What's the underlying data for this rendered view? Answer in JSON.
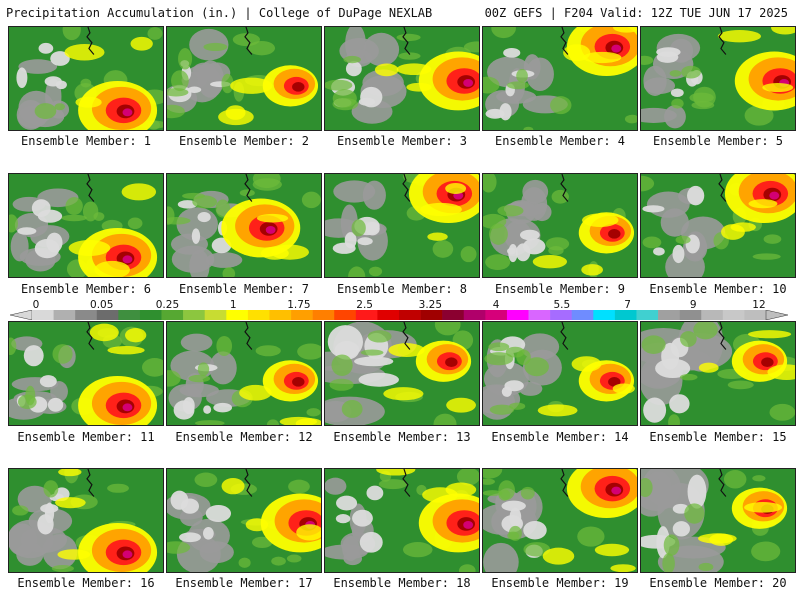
{
  "header": {
    "left_title": "Precipitation Accumulation (in.) | College of DuPage NEXLAB",
    "right_title": "00Z GEFS | F204 Valid: 12Z TUE JUN 17 2025"
  },
  "panels": [
    {
      "caption": "Ensemble Member: 1",
      "dominant": "wet-south-east"
    },
    {
      "caption": "Ensemble Member: 2",
      "dominant": "moderate"
    },
    {
      "caption": "Ensemble Member: 3",
      "dominant": "wet-east"
    },
    {
      "caption": "Ensemble Member: 4",
      "dominant": "wet-north-east"
    },
    {
      "caption": "Ensemble Member: 5",
      "dominant": "wet-east"
    },
    {
      "caption": "Ensemble Member: 6",
      "dominant": "wet-south-east"
    },
    {
      "caption": "Ensemble Member: 7",
      "dominant": "wet-central"
    },
    {
      "caption": "Ensemble Member: 8",
      "dominant": "wet-north-east"
    },
    {
      "caption": "Ensemble Member: 9",
      "dominant": "moderate"
    },
    {
      "caption": "Ensemble Member: 10",
      "dominant": "wet-north-east"
    },
    {
      "caption": "Ensemble Member: 11",
      "dominant": "wet-south-east"
    },
    {
      "caption": "Ensemble Member: 12",
      "dominant": "moderate"
    },
    {
      "caption": "Ensemble Member: 13",
      "dominant": "dry-west"
    },
    {
      "caption": "Ensemble Member: 14",
      "dominant": "moderate"
    },
    {
      "caption": "Ensemble Member: 15",
      "dominant": "dry-west"
    },
    {
      "caption": "Ensemble Member: 16",
      "dominant": "wet-south-east"
    },
    {
      "caption": "Ensemble Member: 17",
      "dominant": "wet-east"
    },
    {
      "caption": "Ensemble Member: 18",
      "dominant": "wet-east"
    },
    {
      "caption": "Ensemble Member: 19",
      "dominant": "wet-north-east"
    },
    {
      "caption": "Ensemble Member: 20",
      "dominant": "dry-west"
    }
  ],
  "colorbar": {
    "labels": [
      "0",
      "0.05",
      "0.25",
      "1",
      "1.75",
      "2.5",
      "3.25",
      "4",
      "5.5",
      "7",
      "9",
      "12"
    ],
    "colors": [
      "#d9d9d9",
      "#b0b0b0",
      "#8a8a8a",
      "#6c6c6c",
      "#3f8f3f",
      "#2f8f2f",
      "#56a832",
      "#8cc63f",
      "#c8dc32",
      "#ffff00",
      "#ffe000",
      "#ffbf00",
      "#ff9f00",
      "#ff7f00",
      "#ff4500",
      "#ff1a1a",
      "#e00000",
      "#c00000",
      "#a00000",
      "#8b0030",
      "#b0006a",
      "#d6007a",
      "#ff00ff",
      "#d966ff",
      "#a66cff",
      "#6f8cff",
      "#00e0ff",
      "#00c8d0",
      "#40d0d0",
      "#a0a0a0",
      "#909090",
      "#b8b8b8",
      "#c8c8c8",
      "#bebebe"
    ]
  },
  "palette": {
    "dry_light": "#dcdcdc",
    "dry_dark": "#9a9a9a",
    "green": "#2f8f2f",
    "light_green": "#6dbb3a",
    "yellow": "#ffff00",
    "orange": "#ff9f00",
    "red": "#ff1a1a",
    "dark_red": "#a00000",
    "magenta": "#d6007a",
    "cyan": "#00e0ff"
  }
}
